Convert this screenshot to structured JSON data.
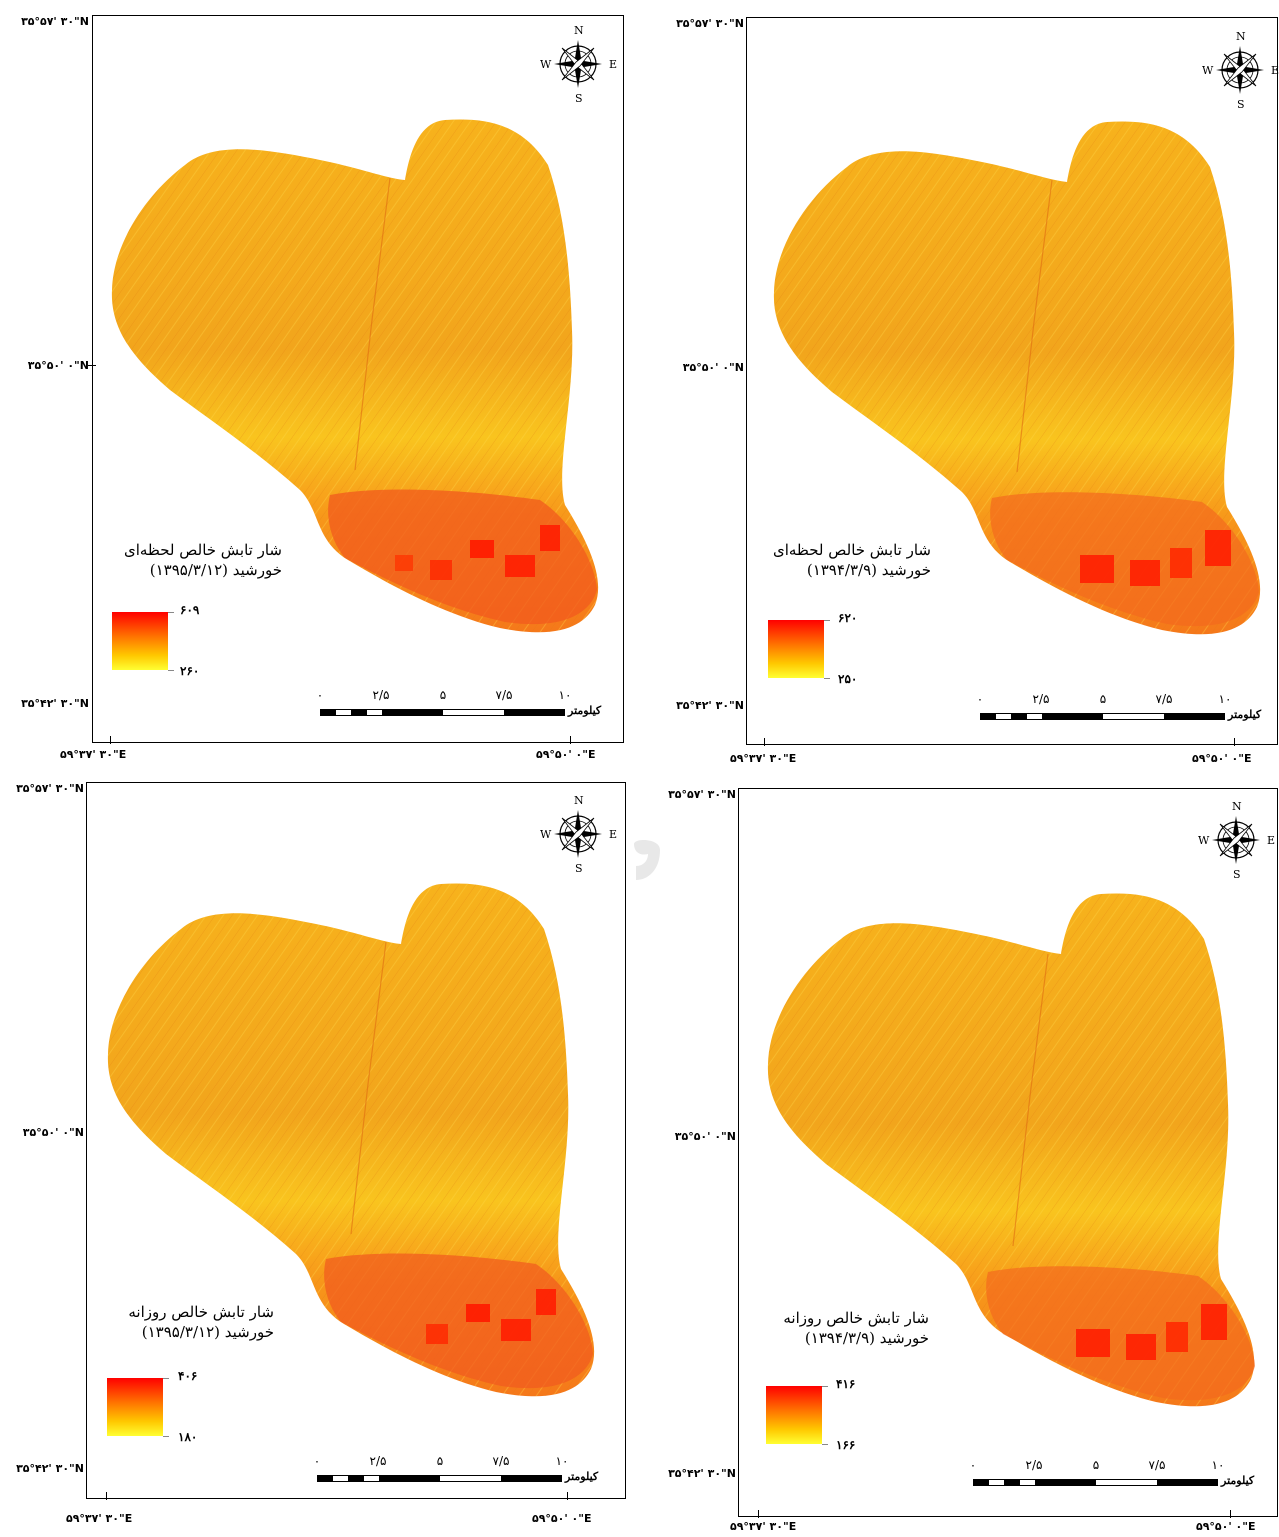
{
  "compass": {
    "n": "N",
    "s": "S",
    "e": "E",
    "w": "W"
  },
  "panels": [
    {
      "lat_top": "۳۵°۵۷' ۳۰\"N",
      "lat_mid": "۳۵°۵۰' ۰\"N",
      "lat_bottom": "۳۵°۴۲' ۳۰\"N",
      "lon_left": "۵۹°۳۷' ۳۰\"E",
      "lon_right": "۵۹°۵۰' ۰\"E",
      "title_line1": "شار تابش خالص لحظه‌ای",
      "title_line2": "خورشید (۱۳۹۵/۳/۱۲)",
      "legend_max": "۶۰۹",
      "legend_min": "۲۶۰",
      "scale_labels": [
        "۰",
        "۲/۵",
        "۵",
        "۷/۵",
        "۱۰"
      ],
      "scale_unit": "کیلومتر"
    },
    {
      "lat_top": "۳۵°۵۷' ۳۰\"N",
      "lat_mid": "۳۵°۵۰' ۰\"N",
      "lat_bottom": "۳۵°۴۲' ۳۰\"N",
      "lon_left": "۵۹°۳۷' ۳۰\"E",
      "lon_right": "۵۹°۵۰' ۰\"E",
      "title_line1": "شار تابش خالص لحظه‌ای",
      "title_line2": "خورشید (۱۳۹۴/۳/۹)",
      "legend_max": "۶۲۰",
      "legend_min": "۲۵۰",
      "scale_labels": [
        "۰",
        "۲/۵",
        "۵",
        "۷/۵",
        "۱۰"
      ],
      "scale_unit": "کیلومتر"
    },
    {
      "lat_top": "۳۵°۵۷' ۳۰\"N",
      "lat_mid": "۳۵°۵۰' ۰\"N",
      "lat_bottom": "۳۵°۴۲' ۳۰\"N",
      "lon_left": "۵۹°۳۷' ۳۰\"E",
      "lon_right": "۵۹°۵۰' ۰\"E",
      "title_line1": "شار تابش خالص روزانه",
      "title_line2": "خورشید (۱۳۹۵/۳/۱۲)",
      "legend_max": "۴۰۶",
      "legend_min": "۱۸۰",
      "scale_labels": [
        "۰",
        "۲/۵",
        "۵",
        "۷/۵",
        "۱۰"
      ],
      "scale_unit": "کیلومتر"
    },
    {
      "lat_top": "۳۵°۵۷' ۳۰\"N",
      "lat_mid": "۳۵°۵۰' ۰\"N",
      "lat_bottom": "۳۵°۴۲' ۳۰\"N",
      "lon_left": "۵۹°۳۷' ۳۰\"E",
      "lon_right": "۵۹°۵۰' ۰\"E",
      "title_line1": "شار تابش خالص روزانه",
      "title_line2": "خورشید (۱۳۹۴/۳/۹)",
      "legend_max": "۴۱۶",
      "legend_min": "۱۶۶",
      "scale_labels": [
        "۰",
        "۲/۵",
        "۵",
        "۷/۵",
        "۱۰"
      ],
      "scale_unit": "کیلومتر"
    }
  ]
}
